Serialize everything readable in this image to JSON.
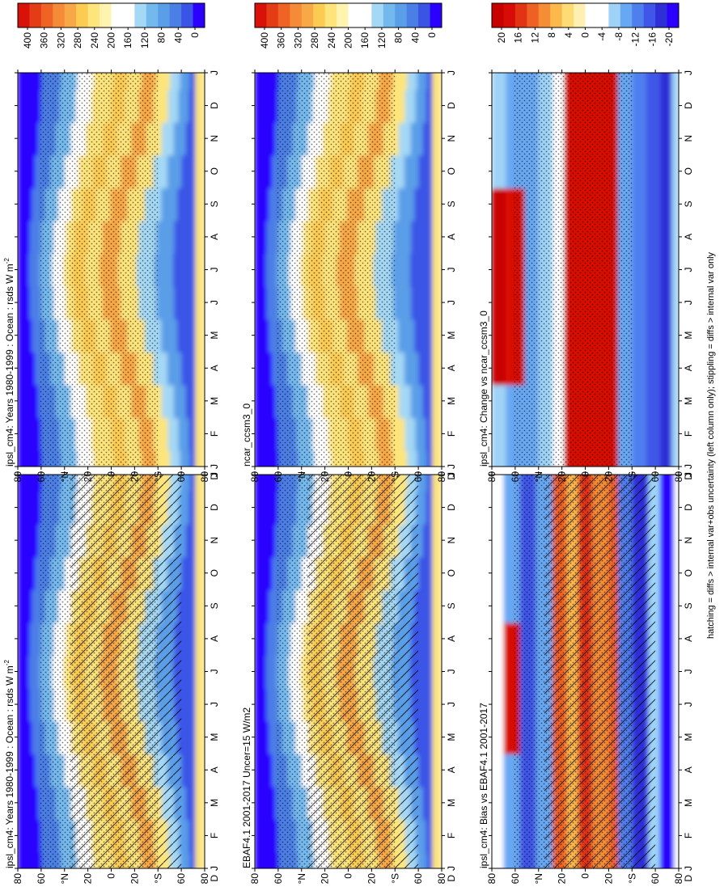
{
  "figure": {
    "footnote": "hatching = diffs > internal var+obs uncertainty (left column only); stippling = diffs > internal var only",
    "orientation": "rotated-90-clockwise",
    "months": [
      "J",
      "F",
      "M",
      "A",
      "M",
      "J",
      "J",
      "A",
      "S",
      "O",
      "N",
      "D",
      "J"
    ],
    "lat_ticks": [
      "80",
      "60",
      "°N",
      "20",
      "0",
      "20",
      "°S",
      "60",
      "80"
    ],
    "lat_values": [
      80,
      60,
      40,
      20,
      0,
      -20,
      -40,
      -60,
      -80
    ],
    "y_start_label": "D",
    "colors": {
      "absolute_scale": [
        "#2c00ff",
        "#3a54e6",
        "#4c7fe5",
        "#5a9ee8",
        "#74b9ee",
        "#a4d8f4",
        "#ffffff",
        "#ffffff",
        "#fff3b0",
        "#fde57c",
        "#fbcb52",
        "#f8a846",
        "#f58b38",
        "#ef6424",
        "#e43c16",
        "#d81208"
      ],
      "difference_scale": [
        "#2c00ff",
        "#2f2fd6",
        "#3f56e8",
        "#4f7fee",
        "#67a8f3",
        "#9ed3f7",
        "#ffffff",
        "#ffffff",
        "#ffefb0",
        "#fddb75",
        "#fbb84b",
        "#f58d34",
        "#ef6024",
        "#e23315",
        "#d80c06",
        "#c80000"
      ]
    }
  },
  "chart_data": [
    {
      "type": "heatmap",
      "title": "ipsl_cm4: Years 1980-1999 : Ocean : rsds W m",
      "title_superscript": "-2",
      "x": [
        "J",
        "F",
        "M",
        "A",
        "M",
        "J",
        "J",
        "A",
        "S",
        "O",
        "N",
        "D",
        "J"
      ],
      "y": [
        80,
        60,
        40,
        20,
        0,
        -20,
        -40,
        -60,
        -80
      ],
      "colorbar_ticks": [
        "400",
        "360",
        "320",
        "280",
        "240",
        "200",
        "160",
        "120",
        "80",
        "40",
        "0"
      ],
      "zlim": [
        0,
        400
      ],
      "hatching": true,
      "stippling": true,
      "panel": "top-left"
    },
    {
      "type": "heatmap",
      "title": "ipsl_cm4: Years 1980-1999 : Ocean : rsds W m",
      "title_superscript": "-2",
      "x": [
        "J",
        "F",
        "M",
        "A",
        "M",
        "J",
        "J",
        "A",
        "S",
        "O",
        "N",
        "D",
        "J"
      ],
      "y": [
        80,
        60,
        40,
        20,
        0,
        -20,
        -40,
        -60,
        -80
      ],
      "colorbar_ticks": [
        "400",
        "360",
        "320",
        "280",
        "240",
        "200",
        "160",
        "120",
        "80",
        "40",
        "0"
      ],
      "zlim": [
        0,
        400
      ],
      "hatching": false,
      "stippling": true,
      "panel": "top-right"
    },
    {
      "type": "heatmap",
      "title": "EBAF4.1 2001-2017 Uncer=15 W/m2",
      "x": [
        "J",
        "F",
        "M",
        "A",
        "M",
        "J",
        "J",
        "A",
        "S",
        "O",
        "N",
        "D",
        "J"
      ],
      "y": [
        80,
        60,
        40,
        20,
        0,
        -20,
        -40,
        -60,
        -80
      ],
      "colorbar_ticks": [
        "400",
        "360",
        "320",
        "280",
        "240",
        "200",
        "160",
        "120",
        "80",
        "40",
        "0"
      ],
      "zlim": [
        0,
        400
      ],
      "hatching": true,
      "stippling": true,
      "panel": "middle-left"
    },
    {
      "type": "heatmap",
      "title": "ncar_ccsm3_0",
      "x": [
        "J",
        "F",
        "M",
        "A",
        "M",
        "J",
        "J",
        "A",
        "S",
        "O",
        "N",
        "D",
        "J"
      ],
      "y": [
        80,
        60,
        40,
        20,
        0,
        -20,
        -40,
        -60,
        -80
      ],
      "colorbar_ticks": [
        "400",
        "360",
        "320",
        "280",
        "240",
        "200",
        "160",
        "120",
        "80",
        "40",
        "0"
      ],
      "zlim": [
        0,
        400
      ],
      "hatching": false,
      "stippling": true,
      "panel": "middle-right"
    },
    {
      "type": "heatmap",
      "title": "ipsl_cm4: Bias vs EBAF4.1 2001-2017",
      "x": [
        "J",
        "F",
        "M",
        "A",
        "M",
        "J",
        "J",
        "A",
        "S",
        "O",
        "N",
        "D",
        "J"
      ],
      "y": [
        80,
        60,
        40,
        20,
        0,
        -20,
        -40,
        -60,
        -80
      ],
      "colorbar_ticks": [
        "20",
        "16",
        "12",
        "8",
        "4",
        "0",
        "-4",
        "-8",
        "-12",
        "-16",
        "-20"
      ],
      "zlim": [
        -20,
        20
      ],
      "hatching": true,
      "stippling": true,
      "panel": "bottom-left"
    },
    {
      "type": "heatmap",
      "title": "ipsl_cm4: Change vs ncar_ccsm3_0",
      "x": [
        "J",
        "F",
        "M",
        "A",
        "M",
        "J",
        "J",
        "A",
        "S",
        "O",
        "N",
        "D",
        "J"
      ],
      "y": [
        80,
        60,
        40,
        20,
        0,
        -20,
        -40,
        -60,
        -80
      ],
      "colorbar_ticks": [
        "20",
        "16",
        "12",
        "8",
        "4",
        "0",
        "-4",
        "-8",
        "-12",
        "-16",
        "-20"
      ],
      "zlim": [
        -20,
        20
      ],
      "hatching": false,
      "stippling": true,
      "panel": "bottom-right"
    }
  ]
}
